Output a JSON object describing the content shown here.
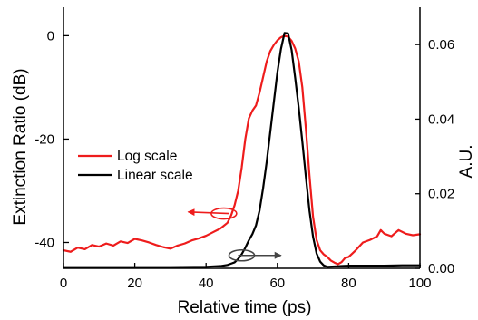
{
  "chart_data": {
    "type": "line",
    "xlabel": "Relative time (ps)",
    "ylabel": "Extinction Ratio (dB)",
    "y2label": "A.U.",
    "xlim": [
      0,
      100
    ],
    "ylim": [
      -45,
      5.5
    ],
    "y2lim": [
      0,
      0.07
    ],
    "x_ticks": [
      0,
      20,
      40,
      60,
      80,
      100
    ],
    "y_ticks": [
      0,
      -20,
      -40
    ],
    "y2_ticks": [
      0.0,
      0.02,
      0.04,
      0.06
    ],
    "x_tick_labels": [
      "0",
      "20",
      "40",
      "60",
      "80",
      "100"
    ],
    "y_tick_labels": [
      "0",
      "-20",
      "-40"
    ],
    "y2_tick_labels": [
      "0.00",
      "0.02",
      "0.04",
      "0.06"
    ],
    "grid": false,
    "legend_position": "middle-left",
    "series": [
      {
        "name": "Log scale",
        "axis": "left",
        "color": "#ee1c1c",
        "x": [
          0,
          2,
          4,
          6,
          8,
          10,
          12,
          14,
          16,
          18,
          20,
          22,
          24,
          26,
          28,
          30,
          32,
          34,
          36,
          38,
          40,
          42,
          44,
          46,
          47,
          48,
          49,
          50,
          51,
          52,
          53,
          54,
          55,
          56,
          57,
          58,
          59,
          60,
          61,
          62,
          63,
          64,
          65,
          66,
          67,
          68,
          69,
          70,
          71,
          72,
          73,
          74,
          75,
          76,
          77,
          78,
          79,
          80,
          82,
          84,
          86,
          88,
          89,
          90,
          92,
          94,
          96,
          98,
          100
        ],
        "y": [
          -41.5,
          -41.8,
          -41.0,
          -41.3,
          -40.5,
          -40.8,
          -40.2,
          -40.6,
          -39.8,
          -40.1,
          -39.3,
          -39.6,
          -40.0,
          -40.5,
          -40.9,
          -41.2,
          -40.6,
          -40.2,
          -39.6,
          -39.2,
          -38.7,
          -38.0,
          -37.3,
          -36.2,
          -34.8,
          -32.8,
          -30.0,
          -25.5,
          -20.0,
          -16.0,
          -14.5,
          -13.5,
          -11.0,
          -8.0,
          -5.0,
          -3.0,
          -1.8,
          -0.9,
          -0.3,
          0.0,
          -0.2,
          -1.0,
          -2.5,
          -5.0,
          -10.0,
          -18.0,
          -27.0,
          -35.0,
          -39.5,
          -41.5,
          -42.3,
          -42.8,
          -43.5,
          -43.9,
          -44.2,
          -43.8,
          -43.0,
          -42.8,
          -41.5,
          -40.0,
          -39.5,
          -38.8,
          -37.6,
          -38.3,
          -38.8,
          -37.6,
          -38.3,
          -38.6,
          -38.4
        ]
      },
      {
        "name": "Linear scale",
        "axis": "right",
        "color": "#000000",
        "x": [
          0,
          10,
          20,
          30,
          40,
          44,
          46,
          48,
          49,
          50,
          51,
          52,
          53,
          54,
          55,
          56,
          57,
          58,
          59,
          60,
          61,
          62,
          63,
          64,
          65,
          66,
          67,
          68,
          69,
          70,
          71,
          72,
          73,
          74,
          76,
          78,
          80,
          85,
          90,
          95,
          100
        ],
        "y": [
          0.0003,
          0.0003,
          0.0003,
          0.0003,
          0.0004,
          0.0006,
          0.0009,
          0.0016,
          0.0025,
          0.0038,
          0.0055,
          0.0075,
          0.0092,
          0.0115,
          0.0155,
          0.0215,
          0.0285,
          0.0365,
          0.0445,
          0.0525,
          0.0588,
          0.0631,
          0.063,
          0.0585,
          0.051,
          0.043,
          0.034,
          0.0245,
          0.0155,
          0.0085,
          0.004,
          0.0018,
          0.0008,
          0.0004,
          0.0005,
          0.0006,
          0.0007,
          0.0007,
          0.0007,
          0.0008,
          0.0008
        ]
      }
    ],
    "annotations": [
      {
        "type": "ellipse-arrow",
        "target_series": "Log scale",
        "direction": "left",
        "color": "#ee1c1c",
        "ellipse_center": [
          45,
          -34.4
        ],
        "arrow_tip": [
          35,
          -34.1
        ]
      },
      {
        "type": "ellipse-arrow",
        "target_series": "Linear scale",
        "direction": "right",
        "color": "#444444",
        "ellipse_center": [
          50,
          -42.5
        ],
        "arrow_tip": [
          61,
          -42.5
        ]
      }
    ]
  }
}
